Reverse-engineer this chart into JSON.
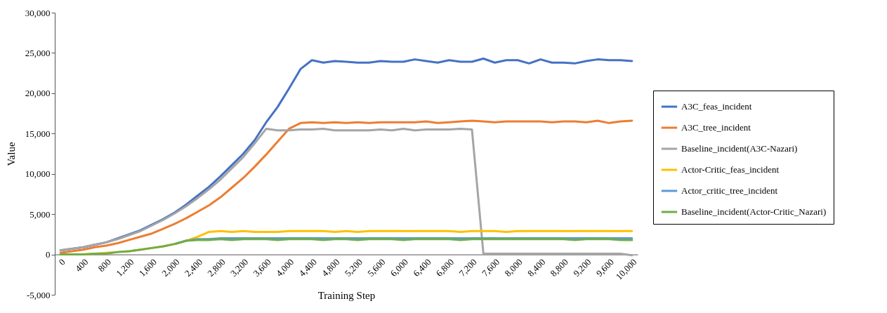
{
  "chart_data": {
    "type": "line",
    "xlabel": "Training Step",
    "ylabel": "Value",
    "categories": [
      "0",
      null,
      "400",
      null,
      "800",
      null,
      "1,200",
      null,
      "1,600",
      null,
      "2,000",
      null,
      "2,400",
      null,
      "2,800",
      null,
      "3,200",
      null,
      "3,600",
      null,
      "4,000",
      null,
      "4,400",
      null,
      "4,800",
      null,
      "5,200",
      null,
      "5,600",
      null,
      "6,000",
      null,
      "6,400",
      null,
      "6,800",
      null,
      "7,200",
      null,
      "7,600",
      null,
      "8,000",
      null,
      "8,400",
      null,
      "8,800",
      null,
      "9,200",
      null,
      "9,600",
      null,
      "10,000"
    ],
    "ylim": [
      -5000,
      30000
    ],
    "yticks": [
      {
        "value": -5000,
        "label": "-5,000"
      },
      0,
      {
        "value": 5000,
        "label": "5,000"
      },
      {
        "value": 10000,
        "label": "10,000"
      },
      {
        "value": 15000,
        "label": "15,000"
      },
      {
        "value": 20000,
        "label": "20,000"
      },
      {
        "value": 25000,
        "label": "25,000"
      },
      {
        "value": 30000,
        "label": "30,000"
      }
    ],
    "grid": false,
    "legend": "right",
    "marker": "none",
    "line_style": "solid",
    "series": [
      {
        "name": "A3C_feas_incident",
        "color": "#4472c4",
        "values": [
          500,
          700,
          900,
          1200,
          1500,
          2000,
          2500,
          3000,
          3700,
          4400,
          5200,
          6200,
          7300,
          8400,
          9700,
          11100,
          12500,
          14200,
          16400,
          18300,
          20600,
          23000,
          24100,
          23800,
          24000,
          23900,
          23800,
          23800,
          24000,
          23900,
          23900,
          24200,
          24000,
          23800,
          24100,
          23900,
          23900,
          24300,
          23800,
          24100,
          24100,
          23700,
          24200,
          23800,
          23800,
          23700,
          24000,
          24200,
          24100,
          24100,
          24000
        ]
      },
      {
        "name": "A3C_tree_incident",
        "color": "#ed7d31",
        "values": [
          200,
          400,
          600,
          900,
          1100,
          1400,
          1800,
          2200,
          2600,
          3200,
          3800,
          4500,
          5300,
          6100,
          7100,
          8300,
          9500,
          10900,
          12400,
          14000,
          15600,
          16300,
          16400,
          16300,
          16400,
          16300,
          16400,
          16300,
          16400,
          16400,
          16400,
          16400,
          16500,
          16300,
          16400,
          16500,
          16600,
          16500,
          16400,
          16500,
          16500,
          16500,
          16500,
          16400,
          16500,
          16500,
          16400,
          16600,
          16300,
          16500,
          16600
        ]
      },
      {
        "name": "Baseline_incident(A3C-Nazari)",
        "color": "#a5a5a5",
        "values": [
          500,
          700,
          900,
          1200,
          1500,
          1900,
          2400,
          2900,
          3600,
          4300,
          5100,
          6000,
          7000,
          8100,
          9300,
          10700,
          12100,
          13800,
          15600,
          15400,
          15400,
          15500,
          15500,
          15600,
          15400,
          15400,
          15400,
          15400,
          15500,
          15400,
          15600,
          15400,
          15500,
          15500,
          15500,
          15600,
          15500,
          100,
          100,
          100,
          100,
          100,
          100,
          100,
          100,
          100,
          100,
          100,
          100,
          100,
          -100
        ]
      },
      {
        "name": "Actor-Critic_feas_incident",
        "color": "#ffc000",
        "values": [
          null,
          null,
          0,
          100,
          200,
          300,
          400,
          600,
          800,
          1000,
          1300,
          1700,
          2200,
          2800,
          2900,
          2800,
          2900,
          2800,
          2800,
          2800,
          2900,
          2900,
          2900,
          2900,
          2800,
          2900,
          2800,
          2900,
          2900,
          2900,
          2900,
          2900,
          2900,
          2900,
          2900,
          2800,
          2900,
          2900,
          2900,
          2800,
          2900,
          2900,
          2900,
          2900,
          2900,
          2900,
          2900,
          2900,
          2900,
          2900,
          2900
        ]
      },
      {
        "name": "Actor_critic_tree_incident",
        "color": "#5b9bd5",
        "values": [
          null,
          null,
          null,
          null,
          null,
          null,
          null,
          null,
          null,
          null,
          1300,
          1700,
          1900,
          1900,
          2000,
          2000,
          2000,
          2000,
          2000,
          2000,
          2000,
          2000,
          2000,
          2000,
          2000,
          2000,
          2000,
          2000,
          2000,
          2000,
          2000,
          2000,
          2000,
          2000,
          2000,
          2000,
          2000,
          2000,
          2000,
          2000,
          2000,
          2000,
          2000,
          2000,
          2000,
          2000,
          2000,
          2000,
          2000,
          2000,
          2000
        ]
      },
      {
        "name": "Baseline_incident(Actor-Critic_Nazari)",
        "color": "#70ad47",
        "values": [
          0,
          0,
          0,
          100,
          100,
          300,
          400,
          600,
          800,
          1000,
          1300,
          1700,
          1800,
          1800,
          1900,
          1800,
          1900,
          1900,
          1900,
          1800,
          1900,
          1900,
          1900,
          1800,
          1900,
          1900,
          1800,
          1900,
          1900,
          1900,
          1800,
          1900,
          1900,
          1900,
          1900,
          1800,
          1900,
          1900,
          1900,
          1900,
          1900,
          1900,
          1900,
          1900,
          1900,
          1800,
          1900,
          1900,
          1900,
          1800,
          1800
        ]
      }
    ]
  }
}
